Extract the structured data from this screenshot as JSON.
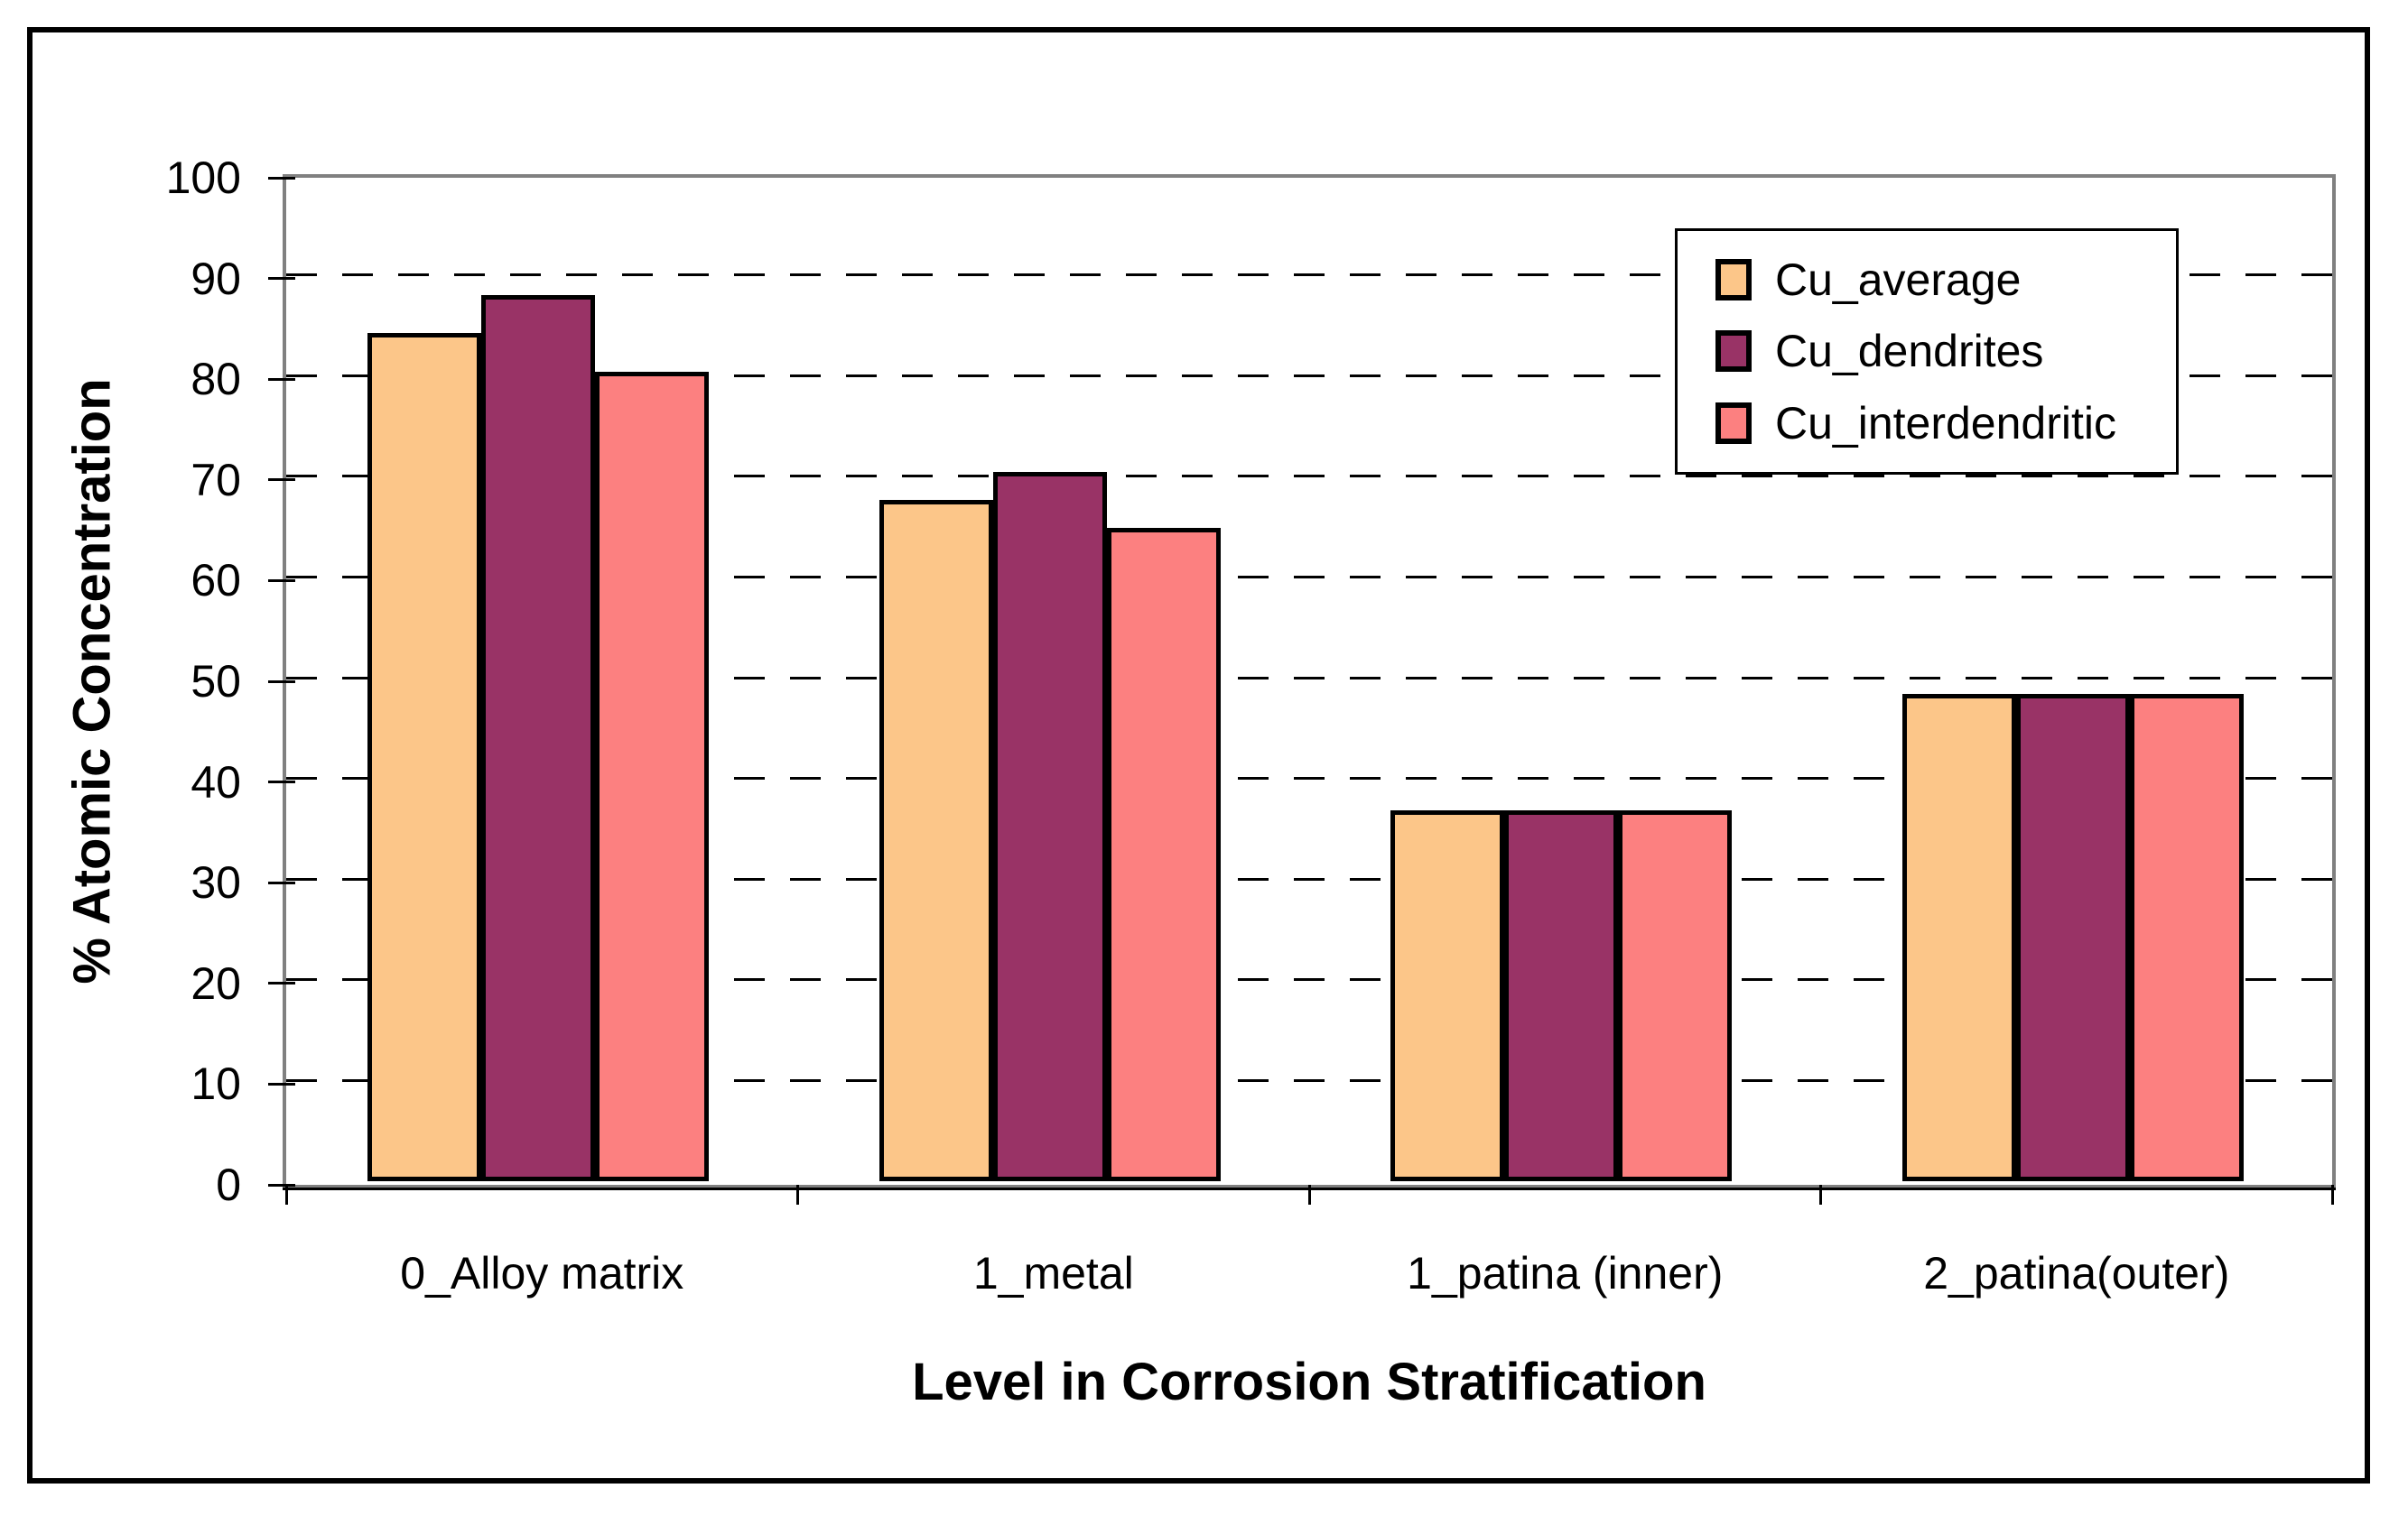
{
  "figure": {
    "background": "#FFFFFF",
    "frame_border_color": "#000000"
  },
  "chart_data": {
    "type": "bar",
    "title": "",
    "xlabel": "Level in Corrosion Stratification",
    "ylabel": "% Atomic Concentration",
    "categories": [
      "0_Alloy matrix",
      "1_metal",
      "1_patina (inner)",
      "2_patina(outer)"
    ],
    "series": [
      {
        "name": "Cu_average",
        "color": "#FCC689",
        "values": [
          84.2,
          67.7,
          36.8,
          48.4
        ]
      },
      {
        "name": "Cu_dendrites",
        "color": "#993366",
        "values": [
          88.0,
          70.4,
          36.8,
          48.4
        ]
      },
      {
        "name": "Cu_interdendritic",
        "color": "#FC8080",
        "values": [
          80.4,
          64.9,
          36.8,
          48.4
        ]
      }
    ],
    "ylim": [
      0,
      100
    ],
    "ytick_interval": 10,
    "ytick_labels": [
      "0",
      "10",
      "20",
      "30",
      "40",
      "50",
      "60",
      "70",
      "80",
      "90",
      "100"
    ],
    "grid": "horizontal-dashed-black",
    "legend_position": "top-right-inside",
    "style_colors": {
      "plot_border": "#808080",
      "gridline": "#000000",
      "bar_outline": "#000000",
      "legend_border": "#000000",
      "text": "#000000"
    }
  }
}
